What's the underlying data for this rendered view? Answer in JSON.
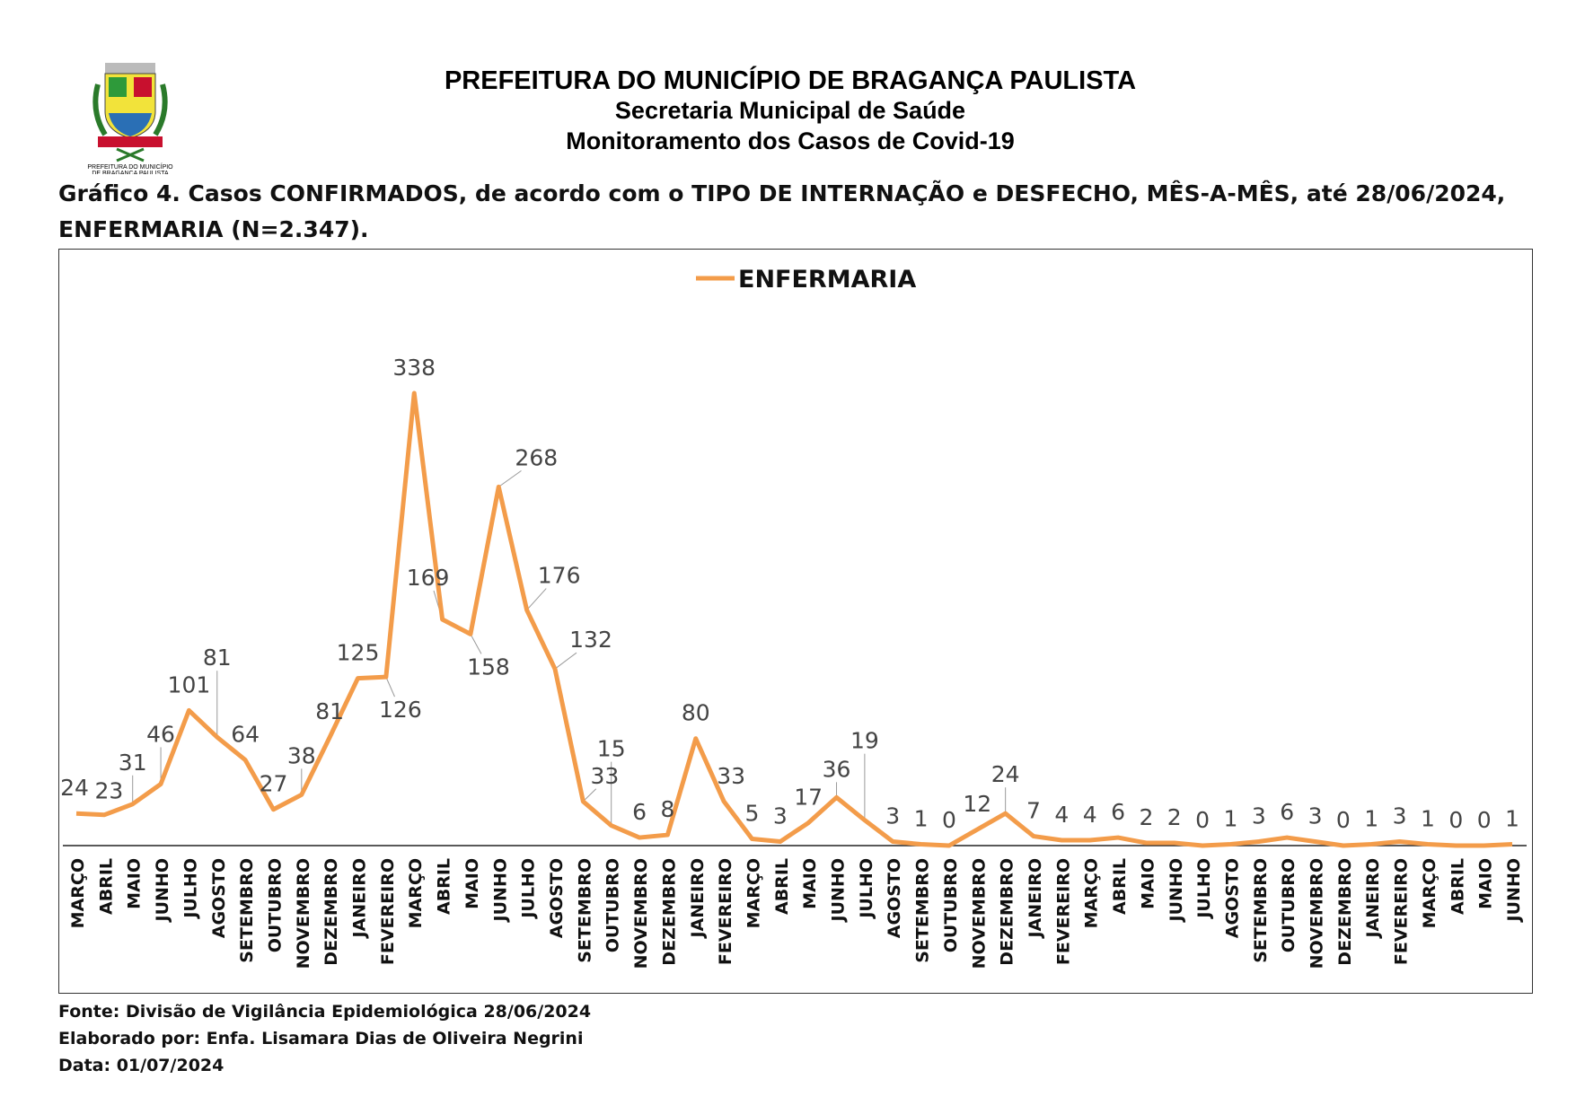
{
  "header": {
    "org": "PREFEITURA DO MUNICÍPIO DE BRAGANÇA PAULISTA",
    "dept": "Secretaria Municipal de Saúde",
    "subtitle": "Monitoramento dos Casos de Covid-19",
    "logo_text": "PREFEITURA DO MUNICÍPIO DE BRAGANÇA PAULISTA"
  },
  "chart_data": {
    "type": "line",
    "title": "Gráfico 4. Casos CONFIRMADOS, de acordo com o TIPO DE INTERNAÇÃO e DESFECHO, MÊS-A-MÊS, até 28/06/2024, ENFERMARIA (N=2.347).",
    "legend": "ENFERMARIA",
    "legend_position": "top-center",
    "line_color": "#F39C4A",
    "ylim": [
      0,
      338
    ],
    "categories": [
      "MARÇO",
      "ABRIL",
      "MAIO",
      "JUNHO",
      "JULHO",
      "AGOSTO",
      "SETEMBRO",
      "OUTUBRO",
      "NOVEMBRO",
      "DEZEMBRO",
      "JANEIRO",
      "FEVEREIRO",
      "MARÇO",
      "ABRIL",
      "MAIO",
      "JUNHO",
      "JULHO",
      "AGOSTO",
      "SETEMBRO",
      "OUTUBRO",
      "NOVEMBRO",
      "DEZEMBRO",
      "JANEIRO",
      "FEVEREIRO",
      "MARÇO",
      "ABRIL",
      "MAIO",
      "JUNHO",
      "JULHO",
      "AGOSTO",
      "SETEMBRO",
      "OUTUBRO",
      "NOVEMBRO",
      "DEZEMBRO",
      "JANEIRO",
      "FEVEREIRO",
      "MARÇO",
      "ABRIL",
      "MAIO",
      "JUNHO",
      "JULHO",
      "AGOSTO",
      "SETEMBRO",
      "OUTUBRO",
      "NOVEMBRO",
      "DEZEMBRO",
      "JANEIRO",
      "FEVEREIRO",
      "MARÇO",
      "ABRIL",
      "MAIO",
      "JUNHO"
    ],
    "series": [
      {
        "name": "ENFERMARIA",
        "values": [
          24,
          23,
          31,
          46,
          101,
          81,
          64,
          27,
          38,
          81,
          125,
          126,
          338,
          169,
          158,
          268,
          176,
          132,
          33,
          15,
          6,
          8,
          80,
          33,
          5,
          3,
          17,
          36,
          19,
          3,
          1,
          0,
          12,
          24,
          7,
          4,
          4,
          6,
          2,
          2,
          0,
          1,
          3,
          6,
          3,
          0,
          1,
          3,
          1,
          0,
          0,
          1
        ]
      }
    ]
  },
  "footer": {
    "source": "Fonte: Divisão de Vigilância Epidemiológica 28/06/2024",
    "author": "Elaborado por: Enfa. Lisamara Dias de Oliveira Negrini",
    "date": "Data: 01/07/2024"
  }
}
